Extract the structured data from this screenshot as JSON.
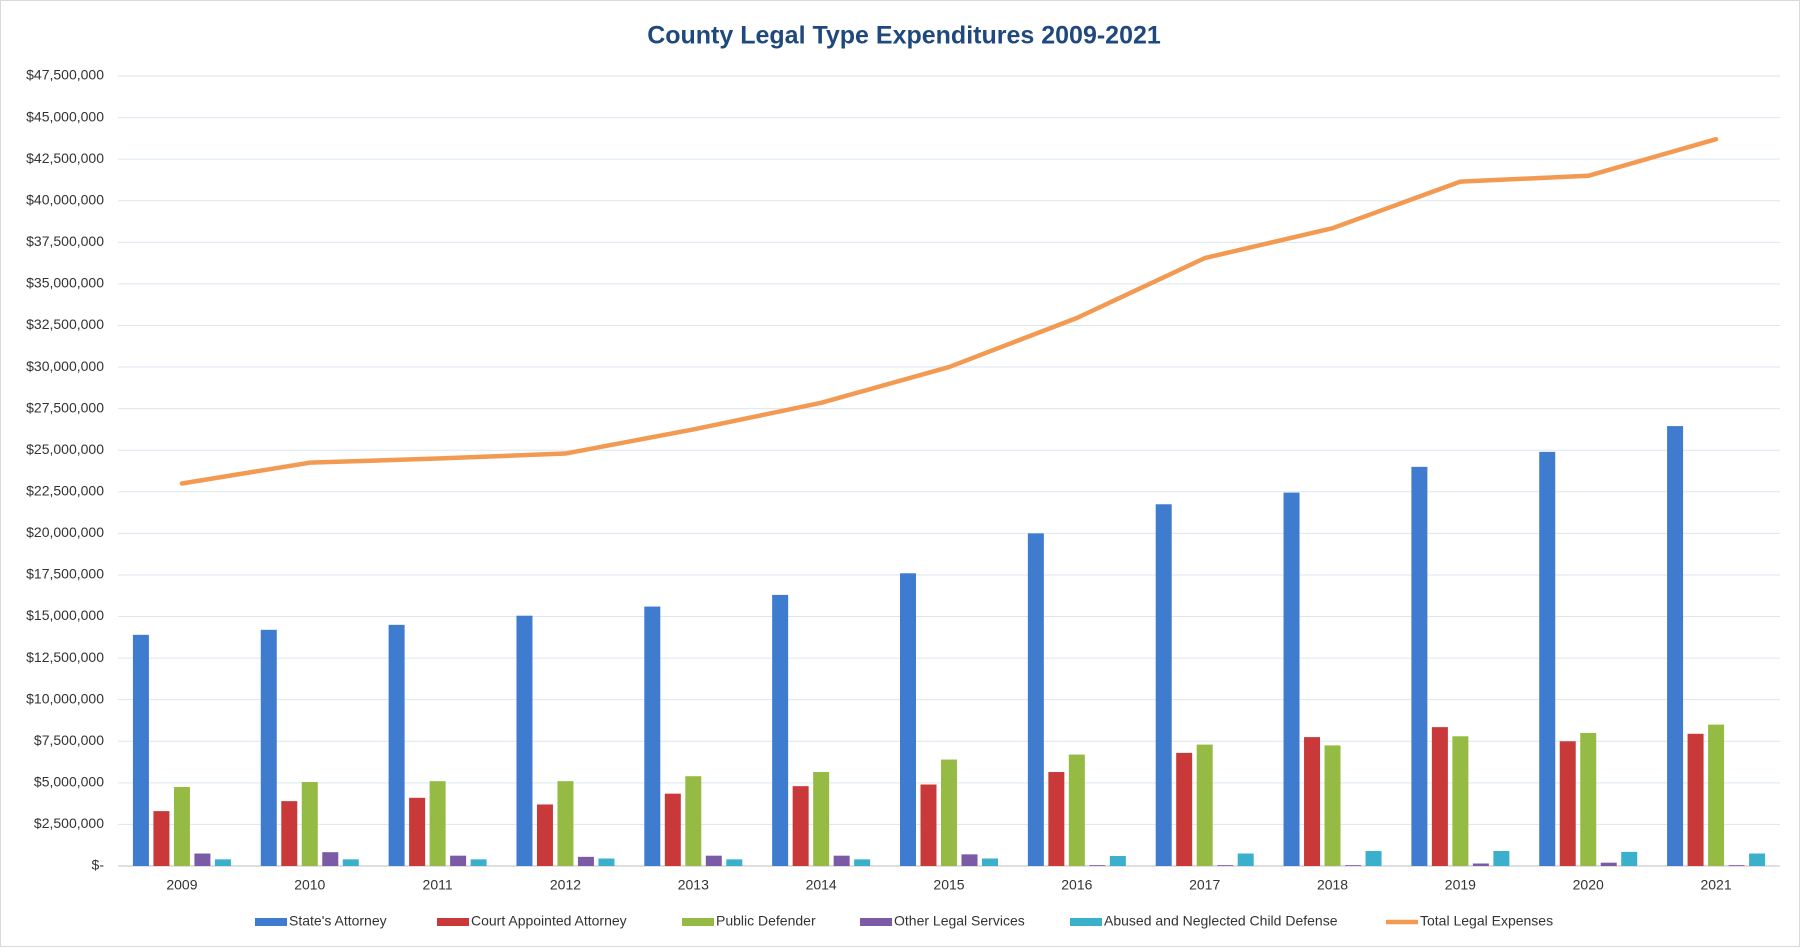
{
  "chart_data": {
    "type": "bar",
    "title": "County Legal Type Expenditures 2009-2021",
    "categories": [
      "2009",
      "2010",
      "2011",
      "2012",
      "2013",
      "2014",
      "2015",
      "2016",
      "2017",
      "2018",
      "2019",
      "2020",
      "2021"
    ],
    "series": [
      {
        "name": "State's Attorney",
        "color": "#3f7ccf",
        "type": "bar",
        "values": [
          13900000,
          14200000,
          14500000,
          15050000,
          15600000,
          16300000,
          17600000,
          20000000,
          21750000,
          22450000,
          24000000,
          24900000,
          26450000
        ]
      },
      {
        "name": "Court Appointed Attorney",
        "color": "#c9393a",
        "type": "bar",
        "values": [
          3300000,
          3900000,
          4100000,
          3700000,
          4350000,
          4800000,
          4900000,
          5650000,
          6800000,
          7750000,
          8350000,
          7500000,
          7950000
        ]
      },
      {
        "name": "Public Defender",
        "color": "#96bb45",
        "type": "bar",
        "values": [
          4750000,
          5050000,
          5100000,
          5100000,
          5400000,
          5650000,
          6400000,
          6700000,
          7300000,
          7250000,
          7800000,
          8000000,
          8500000
        ]
      },
      {
        "name": "Other Legal Services",
        "color": "#7b5aa6",
        "type": "bar",
        "values": [
          750000,
          830000,
          620000,
          550000,
          620000,
          620000,
          700000,
          50000,
          50000,
          50000,
          150000,
          200000,
          50000
        ]
      },
      {
        "name": "Abused and Neglected Child Defense",
        "color": "#3ab0cc",
        "type": "bar",
        "values": [
          400000,
          400000,
          400000,
          450000,
          400000,
          400000,
          450000,
          600000,
          750000,
          900000,
          900000,
          850000,
          750000
        ]
      },
      {
        "name": "Total Legal Expenses",
        "color": "#f39a52",
        "type": "line",
        "values": [
          23000000,
          24250000,
          24500000,
          24800000,
          26250000,
          27850000,
          30000000,
          32950000,
          36550000,
          38350000,
          41150000,
          41500000,
          43700000
        ]
      }
    ],
    "ylim": [
      0,
      47500000
    ],
    "yticks": [
      {
        "value": 0,
        "label": "$-"
      },
      {
        "value": 2500000,
        "label": "$2,500,000"
      },
      {
        "value": 5000000,
        "label": "$5,000,000"
      },
      {
        "value": 7500000,
        "label": "$7,500,000"
      },
      {
        "value": 10000000,
        "label": "$10,000,000"
      },
      {
        "value": 12500000,
        "label": "$12,500,000"
      },
      {
        "value": 15000000,
        "label": "$15,000,000"
      },
      {
        "value": 17500000,
        "label": "$17,500,000"
      },
      {
        "value": 20000000,
        "label": "$20,000,000"
      },
      {
        "value": 22500000,
        "label": "$22,500,000"
      },
      {
        "value": 25000000,
        "label": "$25,000,000"
      },
      {
        "value": 27500000,
        "label": "$27,500,000"
      },
      {
        "value": 30000000,
        "label": "$30,000,000"
      },
      {
        "value": 32500000,
        "label": "$32,500,000"
      },
      {
        "value": 35000000,
        "label": "$35,000,000"
      },
      {
        "value": 37500000,
        "label": "$37,500,000"
      },
      {
        "value": 40000000,
        "label": "$40,000,000"
      },
      {
        "value": 42500000,
        "label": "$42,500,000"
      },
      {
        "value": 45000000,
        "label": "$45,000,000"
      },
      {
        "value": 47500000,
        "label": "$47,500,000"
      }
    ],
    "grid": true,
    "legend": "bottom"
  }
}
